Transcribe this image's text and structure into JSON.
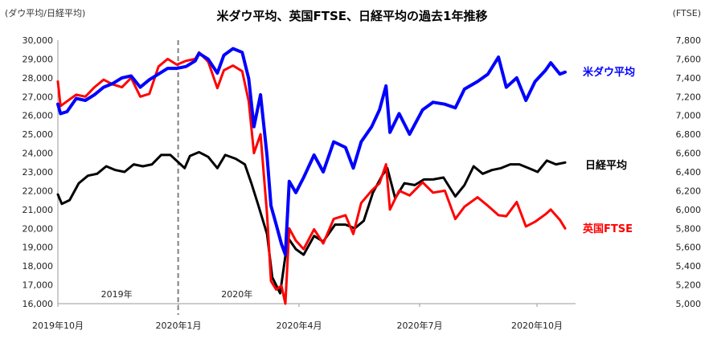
{
  "chart_data": {
    "type": "line",
    "title": "米ダウ平均、英国FTSE、日経平均の過去1年推移",
    "left_axis_unit": "(ダウ平均/日経平均)",
    "right_axis_unit": "(FTSE)",
    "left_ylim": [
      16000,
      30000
    ],
    "right_ylim": [
      5000,
      7800
    ],
    "left_ticks": [
      "16,000",
      "17,000",
      "18,000",
      "19,000",
      "20,000",
      "21,000",
      "22,000",
      "23,000",
      "24,000",
      "25,000",
      "26,000",
      "27,000",
      "28,000",
      "29,000",
      "30,000"
    ],
    "right_ticks": [
      "5,000",
      "5,200",
      "5,400",
      "5,600",
      "5,800",
      "6,000",
      "6,200",
      "6,400",
      "6,600",
      "6,800",
      "7,000",
      "7,200",
      "7,400",
      "7,600",
      "7,800"
    ],
    "x_ticks": [
      "2019年10月",
      "2020年1月",
      "2020年4月",
      "2020年7月",
      "2020年10月"
    ],
    "x_range": [
      "2019-10-01",
      "2020-10-31"
    ],
    "year_marks": [
      {
        "label": "2019年",
        "date": "2019-11-15"
      },
      {
        "label": "2020年",
        "date": "2020-02-15"
      }
    ],
    "divider_date": "2020-01-01",
    "grid": false,
    "series": [
      {
        "name": "米ダウ平均",
        "axis": "left",
        "color": "#0000ff",
        "points": [
          [
            "2019-10-01",
            26600
          ],
          [
            "2019-10-03",
            26100
          ],
          [
            "2019-10-08",
            26200
          ],
          [
            "2019-10-15",
            26900
          ],
          [
            "2019-10-22",
            26800
          ],
          [
            "2019-10-29",
            27100
          ],
          [
            "2019-11-05",
            27500
          ],
          [
            "2019-11-12",
            27700
          ],
          [
            "2019-11-19",
            28000
          ],
          [
            "2019-11-26",
            28100
          ],
          [
            "2019-12-03",
            27500
          ],
          [
            "2019-12-10",
            27900
          ],
          [
            "2019-12-17",
            28200
          ],
          [
            "2019-12-24",
            28500
          ],
          [
            "2019-12-31",
            28500
          ],
          [
            "2020-01-07",
            28600
          ],
          [
            "2020-01-14",
            28900
          ],
          [
            "2020-01-17",
            29300
          ],
          [
            "2020-01-24",
            28990
          ],
          [
            "2020-01-31",
            28250
          ],
          [
            "2020-02-05",
            29200
          ],
          [
            "2020-02-12",
            29550
          ],
          [
            "2020-02-19",
            29350
          ],
          [
            "2020-02-24",
            27950
          ],
          [
            "2020-02-28",
            25400
          ],
          [
            "2020-03-04",
            27100
          ],
          [
            "2020-03-09",
            23850
          ],
          [
            "2020-03-12",
            21200
          ],
          [
            "2020-03-16",
            20200
          ],
          [
            "2020-03-20",
            19170
          ],
          [
            "2020-03-23",
            18600
          ],
          [
            "2020-03-26",
            22500
          ],
          [
            "2020-03-31",
            21900
          ],
          [
            "2020-04-06",
            22700
          ],
          [
            "2020-04-14",
            23900
          ],
          [
            "2020-04-21",
            23000
          ],
          [
            "2020-04-29",
            24600
          ],
          [
            "2020-05-08",
            24300
          ],
          [
            "2020-05-14",
            23200
          ],
          [
            "2020-05-20",
            24600
          ],
          [
            "2020-05-28",
            25400
          ],
          [
            "2020-06-03",
            26300
          ],
          [
            "2020-06-08",
            27570
          ],
          [
            "2020-06-11",
            25100
          ],
          [
            "2020-06-18",
            26100
          ],
          [
            "2020-06-26",
            25000
          ],
          [
            "2020-07-06",
            26300
          ],
          [
            "2020-07-14",
            26700
          ],
          [
            "2020-07-23",
            26600
          ],
          [
            "2020-07-31",
            26400
          ],
          [
            "2020-08-07",
            27400
          ],
          [
            "2020-08-17",
            27800
          ],
          [
            "2020-08-25",
            28200
          ],
          [
            "2020-09-02",
            29100
          ],
          [
            "2020-09-08",
            27500
          ],
          [
            "2020-09-16",
            28000
          ],
          [
            "2020-09-23",
            26800
          ],
          [
            "2020-09-30",
            27800
          ],
          [
            "2020-10-08",
            28400
          ],
          [
            "2020-10-12",
            28800
          ],
          [
            "2020-10-19",
            28200
          ],
          [
            "2020-10-23",
            28300
          ]
        ]
      },
      {
        "name": "日経平均",
        "axis": "left",
        "color": "#000000",
        "points": [
          [
            "2019-10-01",
            21800
          ],
          [
            "2019-10-04",
            21300
          ],
          [
            "2019-10-10",
            21500
          ],
          [
            "2019-10-17",
            22400
          ],
          [
            "2019-10-24",
            22800
          ],
          [
            "2019-10-31",
            22900
          ],
          [
            "2019-11-07",
            23300
          ],
          [
            "2019-11-14",
            23100
          ],
          [
            "2019-11-21",
            23000
          ],
          [
            "2019-11-28",
            23400
          ],
          [
            "2019-12-05",
            23300
          ],
          [
            "2019-12-12",
            23400
          ],
          [
            "2019-12-19",
            23900
          ],
          [
            "2019-12-26",
            23900
          ],
          [
            "2020-01-06",
            23200
          ],
          [
            "2020-01-10",
            23850
          ],
          [
            "2020-01-17",
            24050
          ],
          [
            "2020-01-24",
            23800
          ],
          [
            "2020-01-31",
            23200
          ],
          [
            "2020-02-06",
            23900
          ],
          [
            "2020-02-14",
            23700
          ],
          [
            "2020-02-21",
            23400
          ],
          [
            "2020-02-26",
            22400
          ],
          [
            "2020-03-02",
            21300
          ],
          [
            "2020-03-09",
            19700
          ],
          [
            "2020-03-13",
            17400
          ],
          [
            "2020-03-19",
            16550
          ],
          [
            "2020-03-25",
            19500
          ],
          [
            "2020-03-31",
            18900
          ],
          [
            "2020-04-06",
            18600
          ],
          [
            "2020-04-14",
            19600
          ],
          [
            "2020-04-21",
            19300
          ],
          [
            "2020-04-30",
            20200
          ],
          [
            "2020-05-08",
            20200
          ],
          [
            "2020-05-15",
            20000
          ],
          [
            "2020-05-22",
            20400
          ],
          [
            "2020-05-29",
            21900
          ],
          [
            "2020-06-05",
            22800
          ],
          [
            "2020-06-09",
            23200
          ],
          [
            "2020-06-15",
            21600
          ],
          [
            "2020-06-22",
            22400
          ],
          [
            "2020-06-30",
            22300
          ],
          [
            "2020-07-07",
            22600
          ],
          [
            "2020-07-14",
            22600
          ],
          [
            "2020-07-22",
            22700
          ],
          [
            "2020-07-31",
            21700
          ],
          [
            "2020-08-07",
            22300
          ],
          [
            "2020-08-14",
            23300
          ],
          [
            "2020-08-21",
            22900
          ],
          [
            "2020-08-28",
            23100
          ],
          [
            "2020-09-04",
            23200
          ],
          [
            "2020-09-11",
            23400
          ],
          [
            "2020-09-18",
            23400
          ],
          [
            "2020-09-25",
            23200
          ],
          [
            "2020-10-02",
            23000
          ],
          [
            "2020-10-09",
            23600
          ],
          [
            "2020-10-16",
            23400
          ],
          [
            "2020-10-23",
            23500
          ]
        ]
      },
      {
        "name": "英国FTSE",
        "axis": "right",
        "color": "#ff0000",
        "points": [
          [
            "2019-10-01",
            7360
          ],
          [
            "2019-10-03",
            7100
          ],
          [
            "2019-10-08",
            7150
          ],
          [
            "2019-10-15",
            7220
          ],
          [
            "2019-10-22",
            7200
          ],
          [
            "2019-10-29",
            7300
          ],
          [
            "2019-11-05",
            7380
          ],
          [
            "2019-11-12",
            7330
          ],
          [
            "2019-11-19",
            7300
          ],
          [
            "2019-11-26",
            7400
          ],
          [
            "2019-12-03",
            7200
          ],
          [
            "2019-12-10",
            7230
          ],
          [
            "2019-12-17",
            7520
          ],
          [
            "2019-12-24",
            7600
          ],
          [
            "2019-12-31",
            7540
          ],
          [
            "2020-01-07",
            7580
          ],
          [
            "2020-01-14",
            7600
          ],
          [
            "2020-01-17",
            7670
          ],
          [
            "2020-01-24",
            7570
          ],
          [
            "2020-01-31",
            7290
          ],
          [
            "2020-02-05",
            7480
          ],
          [
            "2020-02-12",
            7530
          ],
          [
            "2020-02-19",
            7470
          ],
          [
            "2020-02-24",
            7150
          ],
          [
            "2020-02-28",
            6600
          ],
          [
            "2020-03-04",
            6800
          ],
          [
            "2020-03-09",
            5950
          ],
          [
            "2020-03-12",
            5240
          ],
          [
            "2020-03-16",
            5150
          ],
          [
            "2020-03-20",
            5190
          ],
          [
            "2020-03-23",
            5000
          ],
          [
            "2020-03-26",
            5800
          ],
          [
            "2020-03-31",
            5670
          ],
          [
            "2020-04-06",
            5580
          ],
          [
            "2020-04-14",
            5790
          ],
          [
            "2020-04-21",
            5640
          ],
          [
            "2020-04-29",
            5900
          ],
          [
            "2020-05-08",
            5940
          ],
          [
            "2020-05-14",
            5740
          ],
          [
            "2020-05-20",
            6070
          ],
          [
            "2020-05-28",
            6200
          ],
          [
            "2020-06-03",
            6280
          ],
          [
            "2020-06-08",
            6480
          ],
          [
            "2020-06-11",
            6000
          ],
          [
            "2020-06-18",
            6200
          ],
          [
            "2020-06-26",
            6150
          ],
          [
            "2020-07-06",
            6290
          ],
          [
            "2020-07-14",
            6180
          ],
          [
            "2020-07-23",
            6200
          ],
          [
            "2020-07-31",
            5900
          ],
          [
            "2020-08-07",
            6030
          ],
          [
            "2020-08-17",
            6130
          ],
          [
            "2020-08-25",
            6040
          ],
          [
            "2020-09-02",
            5940
          ],
          [
            "2020-09-08",
            5930
          ],
          [
            "2020-09-16",
            6080
          ],
          [
            "2020-09-23",
            5820
          ],
          [
            "2020-09-30",
            5870
          ],
          [
            "2020-10-08",
            5950
          ],
          [
            "2020-10-12",
            6000
          ],
          [
            "2020-10-19",
            5890
          ],
          [
            "2020-10-23",
            5800
          ]
        ]
      }
    ]
  }
}
